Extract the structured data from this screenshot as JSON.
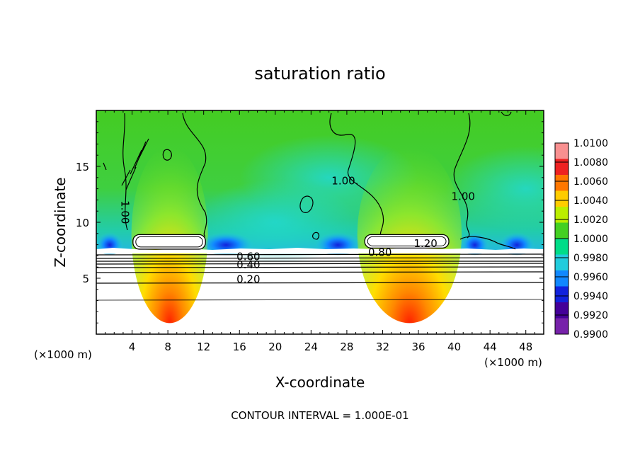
{
  "chart_data": {
    "type": "heatmap",
    "title": "saturation ratio",
    "xlabel": "X-coordinate",
    "ylabel": "Z-coordinate",
    "x_unit": "(×1000 m)",
    "z_unit": "(×1000 m)",
    "xlim": [
      0,
      50
    ],
    "ylim": [
      0,
      20
    ],
    "x_ticks": [
      "4",
      "8",
      "12",
      "16",
      "20",
      "24",
      "28",
      "32",
      "36",
      "40",
      "44",
      "48"
    ],
    "x_tick_values": [
      4,
      8,
      12,
      16,
      20,
      24,
      28,
      32,
      36,
      40,
      44,
      48
    ],
    "y_ticks": [
      "5",
      "10",
      "15"
    ],
    "y_tick_values": [
      5,
      10,
      15
    ],
    "footnote": "CONTOUR INTERVAL = 1.000E-01",
    "colorbar": {
      "min": 0.99,
      "max": 1.01,
      "labels": [
        "1.0100",
        "1.0080",
        "1.0060",
        "1.0040",
        "1.0020",
        "1.0000",
        "0.9980",
        "0.9960",
        "0.9940",
        "0.9920",
        "0.9900"
      ],
      "colors": [
        "#f89090",
        "#ee2222",
        "#ff7700",
        "#ffcc00",
        "#bbee00",
        "#44d022",
        "#00dd88",
        "#22ccdd",
        "#1188ff",
        "#1122dd",
        "#440099",
        "#7722aa"
      ]
    },
    "contour_labels": [
      {
        "text": "1.00",
        "x": 2.8,
        "z": 10.9
      },
      {
        "text": "1.00.",
        "x": 27.8,
        "z": 13.4
      },
      {
        "text": "1.00",
        "x": 41.0,
        "z": 12.0
      },
      {
        "text": "1.20",
        "x": 36.8,
        "z": 7.8
      },
      {
        "text": "0.80",
        "x": 31.7,
        "z": 7.0
      },
      {
        "text": "0.60",
        "x": 17.0,
        "z": 6.6
      },
      {
        "text": "0.40",
        "x": 17.0,
        "z": 5.9
      },
      {
        "text": "0.20",
        "x": 17.0,
        "z": 4.6
      }
    ],
    "cloud_regions": [
      {
        "x0": 4.1,
        "x1": 12.2,
        "z0": 7.6,
        "z1": 8.9
      },
      {
        "x0": 30.0,
        "x1": 39.4,
        "z0": 7.7,
        "z1": 8.9
      }
    ]
  }
}
